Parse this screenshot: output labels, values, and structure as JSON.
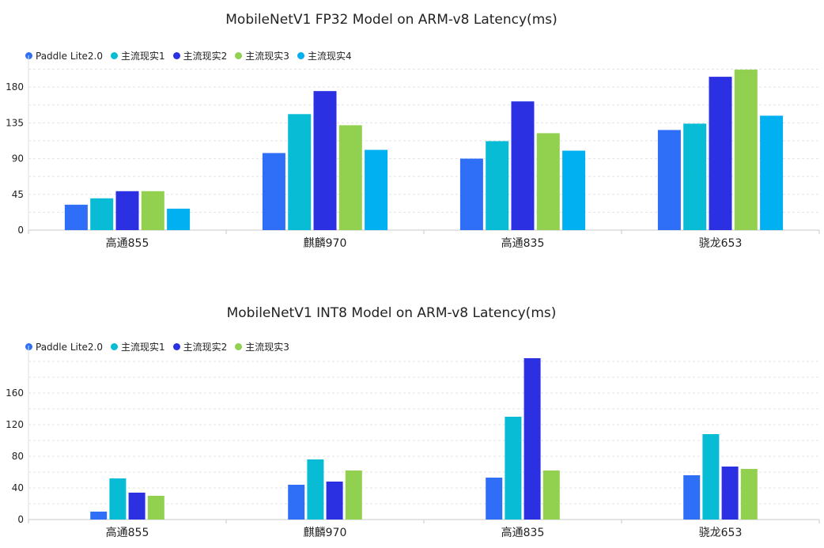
{
  "chart_data": [
    {
      "type": "bar",
      "title": "MobileNetV1 FP32 Model on ARM-v8 Latency(ms)",
      "categories": [
        "高通855",
        "麒麟970",
        "高通835",
        "骁龙653"
      ],
      "series": [
        {
          "name": "Paddle Lite2.0",
          "color": "#2f6ff7",
          "values": [
            32,
            97,
            90,
            126
          ]
        },
        {
          "name": "主流现实1",
          "color": "#08bcd6",
          "values": [
            40,
            146,
            112,
            134
          ]
        },
        {
          "name": "主流现实2",
          "color": "#2b31e2",
          "values": [
            49,
            175,
            162,
            193
          ]
        },
        {
          "name": "主流现实3",
          "color": "#92d050",
          "values": [
            49,
            132,
            122,
            202
          ]
        },
        {
          "name": "主流现实4",
          "color": "#00b0f0",
          "values": [
            27,
            101,
            100,
            144
          ]
        }
      ],
      "yticks": [
        0,
        45,
        90,
        135,
        180
      ],
      "ylim": [
        0,
        210
      ],
      "grid": true,
      "legend": "top-left"
    },
    {
      "type": "bar",
      "title": "MobileNetV1 INT8 Model on ARM-v8 Latency(ms)",
      "categories": [
        "高通855",
        "麒麟970",
        "高通835",
        "骁龙653"
      ],
      "series": [
        {
          "name": "Paddle Lite2.0",
          "color": "#2f6ff7",
          "values": [
            10,
            44,
            53,
            56
          ]
        },
        {
          "name": "主流现实1",
          "color": "#08bcd6",
          "values": [
            52,
            76,
            130,
            108
          ]
        },
        {
          "name": "主流现实2",
          "color": "#2b31e2",
          "values": [
            34,
            48,
            204,
            67
          ]
        },
        {
          "name": "主流现实3",
          "color": "#92d050",
          "values": [
            30,
            62,
            62,
            64
          ]
        }
      ],
      "yticks": [
        0,
        40,
        80,
        120,
        160
      ],
      "ylim": [
        0,
        210
      ],
      "grid": true,
      "legend": "top-left"
    }
  ]
}
